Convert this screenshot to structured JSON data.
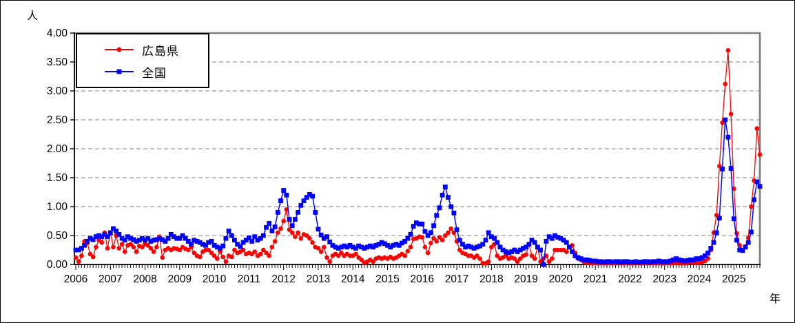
{
  "figure": {
    "y_axis_unit": "人",
    "x_axis_unit": "年"
  },
  "legend": {
    "items": [
      {
        "label": "広島県",
        "color": "#ff0000",
        "marker": "circle"
      },
      {
        "label": "全国",
        "color": "#0000ff",
        "marker": "square"
      }
    ]
  },
  "chart_data": {
    "type": "line",
    "title": "",
    "ylabel": "人",
    "xlabel": "年",
    "ylim": [
      0.0,
      4.0
    ],
    "y_tick_step": 0.5,
    "y_tick_labels": [
      "0.00",
      "0.50",
      "1.00",
      "1.50",
      "2.00",
      "2.50",
      "3.00",
      "3.50",
      "4.00"
    ],
    "x_tick_labels": [
      "2006",
      "2007",
      "2008",
      "2009",
      "2010",
      "2011",
      "2012",
      "2013",
      "2014",
      "2015",
      "2016",
      "2017",
      "2018",
      "2019",
      "2020",
      "2021",
      "2022",
      "2023",
      "2024",
      "2025"
    ],
    "x_start_year": 2006,
    "x_frequency": "monthly",
    "grid": "horizontal-dashed",
    "legend_position": "top-left-inside",
    "series": [
      {
        "name": "広島県",
        "color": "#ff0000",
        "marker": "circle",
        "values": [
          0.12,
          0.05,
          0.15,
          0.4,
          0.37,
          0.18,
          0.13,
          0.3,
          0.42,
          0.38,
          0.55,
          0.28,
          0.55,
          0.3,
          0.5,
          0.28,
          0.35,
          0.22,
          0.33,
          0.35,
          0.3,
          0.22,
          0.32,
          0.3,
          0.35,
          0.33,
          0.28,
          0.22,
          0.3,
          0.48,
          0.12,
          0.25,
          0.28,
          0.25,
          0.28,
          0.27,
          0.25,
          0.3,
          0.27,
          0.25,
          0.3,
          0.2,
          0.15,
          0.13,
          0.22,
          0.25,
          0.25,
          0.2,
          0.15,
          0.1,
          0.22,
          0.13,
          0.05,
          0.15,
          0.13,
          0.25,
          0.2,
          0.22,
          0.25,
          0.18,
          0.2,
          0.18,
          0.22,
          0.15,
          0.18,
          0.25,
          0.2,
          0.15,
          0.3,
          0.4,
          0.55,
          0.62,
          0.75,
          0.95,
          0.6,
          0.55,
          0.48,
          0.55,
          0.45,
          0.52,
          0.5,
          0.45,
          0.38,
          0.3,
          0.28,
          0.22,
          0.3,
          0.12,
          0.05,
          0.15,
          0.18,
          0.15,
          0.2,
          0.15,
          0.18,
          0.15,
          0.15,
          0.18,
          0.12,
          0.08,
          0.03,
          0.05,
          0.08,
          0.05,
          0.1,
          0.12,
          0.1,
          0.12,
          0.1,
          0.13,
          0.1,
          0.12,
          0.15,
          0.18,
          0.15,
          0.23,
          0.3,
          0.44,
          0.45,
          0.48,
          0.47,
          0.3,
          0.2,
          0.37,
          0.45,
          0.4,
          0.47,
          0.42,
          0.5,
          0.55,
          0.62,
          0.55,
          0.4,
          0.25,
          0.2,
          0.18,
          0.15,
          0.15,
          0.12,
          0.15,
          0.1,
          0.02,
          0.02,
          0.05,
          0.3,
          0.35,
          0.15,
          0.1,
          0.12,
          0.15,
          0.1,
          0.12,
          0.1,
          0.05,
          0.1,
          0.15,
          0.17,
          0.35,
          0.15,
          0.1,
          0.3,
          0.05,
          0.1,
          0.15,
          0.05,
          0.1,
          0.25,
          0.25,
          0.25,
          0.25,
          0.22,
          0.3,
          0.33,
          0.2,
          0.1,
          0.08,
          0.05,
          0.03,
          0.03,
          0.02,
          0.03,
          0.02,
          0.03,
          0.02,
          0.02,
          0.03,
          0.02,
          0.02,
          0.03,
          0.02,
          0.02,
          0.03,
          0.02,
          0.02,
          0.03,
          0.02,
          0.02,
          0.03,
          0.02,
          0.03,
          0.02,
          0.02,
          0.03,
          0.02,
          0.02,
          0.03,
          0.02,
          0.03,
          0.03,
          0.02,
          0.03,
          0.02,
          0.03,
          0.04,
          0.03,
          0.03,
          0.03,
          0.04,
          0.06,
          0.1,
          0.25,
          0.55,
          0.85,
          1.7,
          2.45,
          3.12,
          3.7,
          2.6,
          1.31,
          0.54,
          0.33,
          0.25,
          0.31,
          0.46,
          1.0,
          1.45,
          2.35,
          1.9
        ]
      },
      {
        "name": "全国",
        "color": "#0000ff",
        "marker": "square",
        "values": [
          0.25,
          0.25,
          0.28,
          0.33,
          0.4,
          0.45,
          0.43,
          0.48,
          0.5,
          0.48,
          0.52,
          0.48,
          0.55,
          0.62,
          0.58,
          0.52,
          0.45,
          0.42,
          0.48,
          0.45,
          0.43,
          0.4,
          0.42,
          0.45,
          0.42,
          0.45,
          0.4,
          0.42,
          0.43,
          0.45,
          0.43,
          0.4,
          0.45,
          0.52,
          0.48,
          0.45,
          0.45,
          0.5,
          0.45,
          0.4,
          0.35,
          0.42,
          0.4,
          0.38,
          0.35,
          0.33,
          0.38,
          0.4,
          0.33,
          0.3,
          0.28,
          0.32,
          0.45,
          0.58,
          0.5,
          0.42,
          0.35,
          0.31,
          0.38,
          0.42,
          0.46,
          0.4,
          0.48,
          0.42,
          0.45,
          0.5,
          0.64,
          0.71,
          0.58,
          0.65,
          0.9,
          1.1,
          1.28,
          1.2,
          0.78,
          0.67,
          0.78,
          0.9,
          1.02,
          1.1,
          1.16,
          1.21,
          1.18,
          0.9,
          0.61,
          0.51,
          0.45,
          0.48,
          0.39,
          0.33,
          0.3,
          0.28,
          0.3,
          0.32,
          0.3,
          0.33,
          0.3,
          0.28,
          0.32,
          0.3,
          0.28,
          0.3,
          0.32,
          0.3,
          0.33,
          0.35,
          0.38,
          0.36,
          0.33,
          0.3,
          0.33,
          0.35,
          0.33,
          0.37,
          0.4,
          0.45,
          0.52,
          0.66,
          0.72,
          0.7,
          0.7,
          0.57,
          0.5,
          0.55,
          0.67,
          0.85,
          0.98,
          1.2,
          1.34,
          1.16,
          1.0,
          0.89,
          0.6,
          0.42,
          0.35,
          0.3,
          0.32,
          0.3,
          0.28,
          0.3,
          0.32,
          0.35,
          0.42,
          0.55,
          0.48,
          0.45,
          0.38,
          0.3,
          0.25,
          0.22,
          0.2,
          0.22,
          0.25,
          0.22,
          0.25,
          0.28,
          0.3,
          0.35,
          0.42,
          0.38,
          0.3,
          0.25,
          0.0,
          0.4,
          0.48,
          0.45,
          0.5,
          0.47,
          0.45,
          0.42,
          0.38,
          0.3,
          0.22,
          0.15,
          0.12,
          0.1,
          0.08,
          0.08,
          0.07,
          0.06,
          0.06,
          0.05,
          0.05,
          0.04,
          0.05,
          0.05,
          0.04,
          0.05,
          0.05,
          0.04,
          0.05,
          0.05,
          0.04,
          0.04,
          0.05,
          0.04,
          0.04,
          0.05,
          0.05,
          0.04,
          0.05,
          0.05,
          0.06,
          0.05,
          0.05,
          0.05,
          0.06,
          0.08,
          0.1,
          0.08,
          0.07,
          0.06,
          0.07,
          0.08,
          0.08,
          0.1,
          0.1,
          0.12,
          0.15,
          0.2,
          0.28,
          0.38,
          0.55,
          0.8,
          1.65,
          2.5,
          2.2,
          1.66,
          0.79,
          0.42,
          0.25,
          0.24,
          0.3,
          0.38,
          0.56,
          1.12,
          1.43,
          1.35
        ]
      }
    ]
  }
}
